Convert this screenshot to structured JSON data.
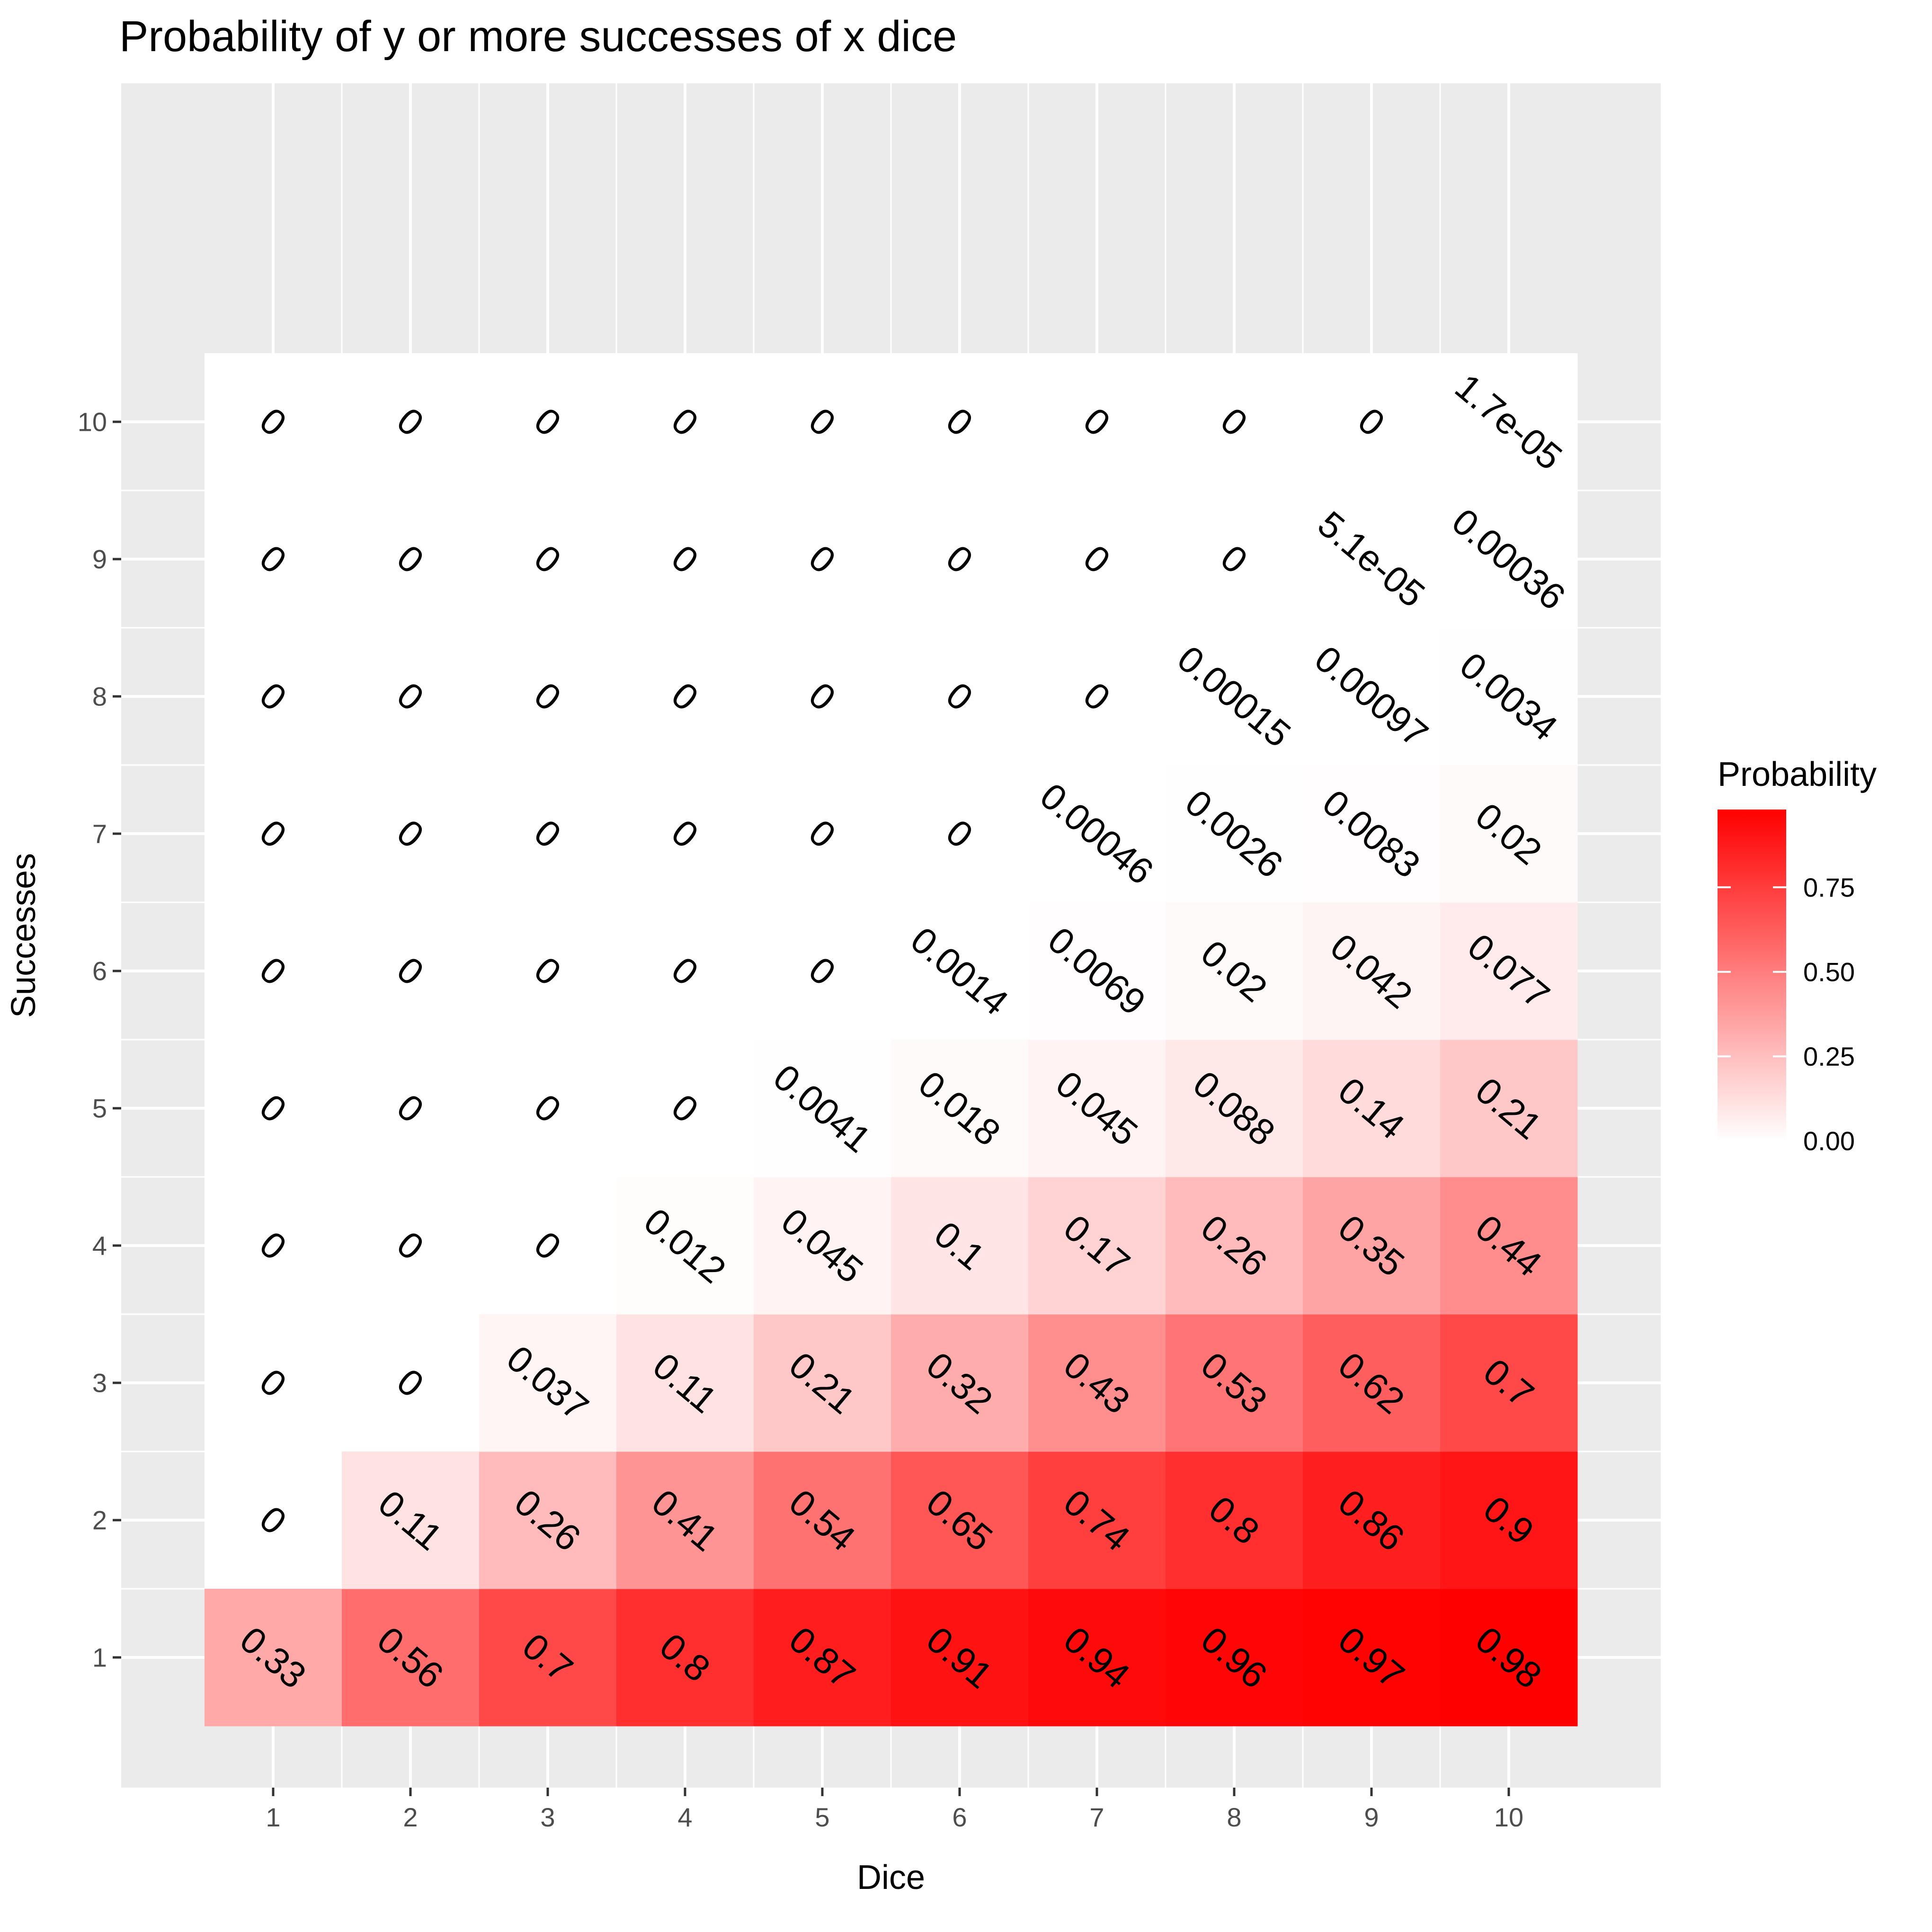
{
  "chart_data": {
    "type": "heatmap",
    "title": "Probability of y or more successes of x dice",
    "xlabel": "Dice",
    "ylabel": "Successes",
    "x": [
      "1",
      "2",
      "3",
      "4",
      "5",
      "6",
      "7",
      "8",
      "9",
      "10"
    ],
    "y": [
      "1",
      "2",
      "3",
      "4",
      "5",
      "6",
      "7",
      "8",
      "9",
      "10"
    ],
    "value_labels": [
      [
        "0.33",
        "0.56",
        "0.7",
        "0.8",
        "0.87",
        "0.91",
        "0.94",
        "0.96",
        "0.97",
        "0.98"
      ],
      [
        "0",
        "0.11",
        "0.26",
        "0.41",
        "0.54",
        "0.65",
        "0.74",
        "0.8",
        "0.86",
        "0.9"
      ],
      [
        "0",
        "0",
        "0.037",
        "0.11",
        "0.21",
        "0.32",
        "0.43",
        "0.53",
        "0.62",
        "0.7"
      ],
      [
        "0",
        "0",
        "0",
        "0.012",
        "0.045",
        "0.1",
        "0.17",
        "0.26",
        "0.35",
        "0.44"
      ],
      [
        "0",
        "0",
        "0",
        "0",
        "0.0041",
        "0.018",
        "0.045",
        "0.088",
        "0.14",
        "0.21"
      ],
      [
        "0",
        "0",
        "0",
        "0",
        "0",
        "0.0014",
        "0.0069",
        "0.02",
        "0.042",
        "0.077"
      ],
      [
        "0",
        "0",
        "0",
        "0",
        "0",
        "0",
        "0.00046",
        "0.0026",
        "0.0083",
        "0.02"
      ],
      [
        "0",
        "0",
        "0",
        "0",
        "0",
        "0",
        "0",
        "0.00015",
        "0.00097",
        "0.0034"
      ],
      [
        "0",
        "0",
        "0",
        "0",
        "0",
        "0",
        "0",
        "0",
        "5.1e-05",
        "0.00036"
      ],
      [
        "0",
        "0",
        "0",
        "0",
        "0",
        "0",
        "0",
        "0",
        "0",
        "1.7e-05"
      ]
    ],
    "legend": {
      "title": "Probability",
      "ticks": [
        "0.00",
        "0.25",
        "0.50",
        "0.75"
      ],
      "tick_values": [
        0,
        0.25,
        0.5,
        0.75
      ],
      "range": [
        0,
        0.98
      ],
      "low_color": "#ffffff",
      "high_color": "#ff0000",
      "placement": "right"
    },
    "panel_background": "#ebebeb",
    "grid_color": "#ffffff",
    "grid": true
  }
}
